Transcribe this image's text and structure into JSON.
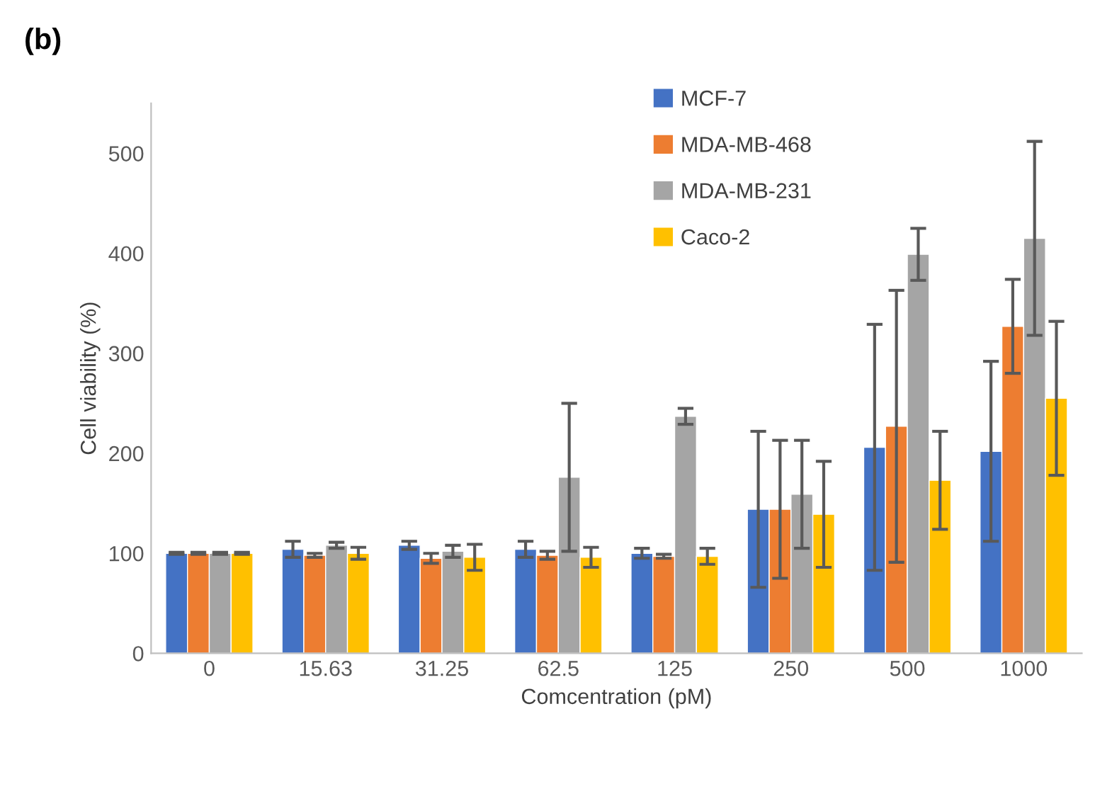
{
  "chart_data": {
    "type": "bar",
    "title": "(b)",
    "xlabel": "Comcentration (pM)",
    "ylabel": "Cell viability (%)",
    "categories": [
      "0",
      "15.63",
      "31.25",
      "62.5",
      "125",
      "250",
      "500",
      "1000"
    ],
    "series": [
      {
        "name": "MCF-7",
        "color": "#4472c4",
        "values": [
          100,
          104,
          108,
          104,
          100,
          144,
          206,
          202
        ],
        "errors": [
          1,
          8,
          4,
          8,
          5,
          78,
          123,
          90
        ]
      },
      {
        "name": "MDA-MB-468",
        "color": "#ed7d31",
        "values": [
          100,
          98,
          95,
          98,
          97,
          144,
          227,
          327
        ],
        "errors": [
          1,
          2,
          5,
          4,
          2,
          69,
          136,
          47
        ]
      },
      {
        "name": "MDA-MB-231",
        "color": "#a5a5a5",
        "values": [
          100,
          108,
          102,
          176,
          237,
          159,
          399,
          415
        ],
        "errors": [
          1,
          3,
          6,
          74,
          8,
          54,
          26,
          97
        ]
      },
      {
        "name": "Caco-2",
        "color": "#ffc000",
        "values": [
          100,
          100,
          96,
          96,
          97,
          139,
          173,
          255
        ],
        "errors": [
          1,
          6,
          13,
          10,
          8,
          53,
          49,
          77
        ]
      }
    ],
    "ylim": [
      0,
      550
    ],
    "yticks": [
      0,
      100,
      200,
      300,
      400,
      500
    ],
    "grid": false,
    "legend": "top"
  }
}
